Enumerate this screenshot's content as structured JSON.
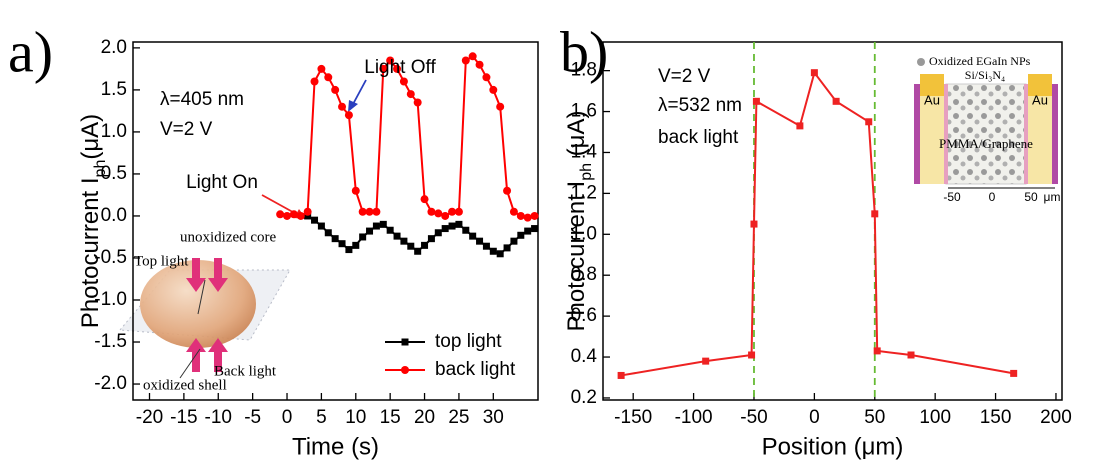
{
  "chart_data": [
    {
      "type": "line",
      "panel_label": "a)",
      "xlabel": "Time (s)",
      "ylabel": [
        "Photocurrent I",
        "ph",
        "(μA)"
      ],
      "x": [
        -1,
        0,
        1,
        2,
        3,
        4,
        5,
        6,
        7,
        8,
        9,
        10,
        11,
        12,
        13,
        14,
        15,
        16,
        17,
        18,
        19,
        20,
        21,
        22,
        23,
        24,
        25,
        26,
        27,
        28,
        29,
        30,
        31,
        32,
        33,
        34,
        35,
        36
      ],
      "series": [
        {
          "name": "top light",
          "color": "#000000",
          "marker": "square",
          "values": [
            null,
            null,
            null,
            null,
            0,
            -0.05,
            -0.12,
            -0.2,
            -0.27,
            -0.33,
            -0.4,
            -0.35,
            -0.25,
            -0.18,
            -0.12,
            -0.1,
            -0.17,
            -0.24,
            -0.3,
            -0.36,
            -0.42,
            -0.35,
            -0.27,
            -0.2,
            -0.15,
            -0.12,
            -0.1,
            -0.17,
            -0.24,
            -0.3,
            -0.36,
            -0.42,
            -0.45,
            -0.38,
            -0.3,
            -0.23,
            -0.18,
            -0.15
          ]
        },
        {
          "name": "back light",
          "color": "#ff0000",
          "marker": "circle",
          "values": [
            0.02,
            0,
            0.02,
            0,
            0.05,
            1.6,
            1.75,
            1.65,
            1.5,
            1.3,
            1.2,
            0.3,
            0.05,
            0.05,
            0.05,
            1.75,
            1.85,
            1.75,
            1.6,
            1.45,
            1.35,
            0.2,
            0.05,
            0.03,
            0,
            0.05,
            0.05,
            1.85,
            1.9,
            1.8,
            1.65,
            1.5,
            1.3,
            0.3,
            0.05,
            0,
            -0.02,
            0
          ]
        }
      ],
      "xlim": [
        -22.4,
        36.5
      ],
      "xticks": [
        -20,
        -15,
        -10,
        -5,
        0,
        5,
        10,
        15,
        20,
        25,
        30
      ],
      "ylim": [
        -2.19,
        2.07
      ],
      "yticks": [
        {
          "value": -2,
          "label": "-2.0"
        },
        -1.5,
        {
          "value": -1,
          "label": "-1.0"
        },
        -0.5,
        {
          "value": 0,
          "label": "0.0"
        },
        0.5,
        {
          "value": 1,
          "label": "1.0"
        },
        1.5,
        {
          "value": 2,
          "label": "2.0"
        }
      ],
      "legend": "lower right",
      "annotations": [
        {
          "text": "λ=405 nm",
          "color": "#000000"
        },
        {
          "text": "V=2 V",
          "color": "#000000"
        },
        {
          "text": "Light Off",
          "color": "#2a3fbf"
        },
        {
          "text": "Light On",
          "color": "#ee2222"
        },
        {
          "text": "unoxidized core",
          "color": "#000000"
        },
        {
          "text": "Top light",
          "color": "#000000"
        },
        {
          "text": "Back light",
          "color": "#000000"
        },
        {
          "text": "oxidized shell",
          "color": "#000000"
        }
      ]
    },
    {
      "type": "line",
      "panel_label": "b)",
      "xlabel": "Position (μm)",
      "ylabel": [
        "Photocurrent I",
        "ph",
        " (μA)"
      ],
      "x": [
        -160,
        -90,
        -52,
        -50,
        -48,
        -12,
        0,
        18,
        45,
        50,
        52,
        80,
        165
      ],
      "series": [
        {
          "name": "back light",
          "color": "#ee2222",
          "marker": "square",
          "values": [
            0.31,
            0.38,
            0.41,
            1.05,
            1.65,
            1.53,
            1.79,
            1.65,
            1.55,
            1.1,
            0.43,
            0.41,
            0.32
          ]
        }
      ],
      "reference_lines": [
        -50,
        50
      ],
      "reference_color": "#66bb33",
      "xlim": [
        -175,
        205
      ],
      "xticks": [
        -150,
        -100,
        -50,
        0,
        50,
        100,
        150,
        200
      ],
      "ylim": [
        0.19,
        1.94
      ],
      "yticks": [
        0.2,
        0.4,
        0.6,
        0.8,
        {
          "value": 1,
          "label": "1.0"
        },
        1.2,
        1.4,
        1.6,
        1.8
      ],
      "annotations": [
        {
          "text": "V=2 V",
          "color": "#000000"
        },
        {
          "text": "λ=532 nm",
          "color": "#000000"
        },
        {
          "text": "back light",
          "color": "#000000"
        },
        {
          "text": "Oxidized EGaIn NPs",
          "color": "#000000"
        },
        {
          "text": "Si/Si₃N₄",
          "color": "#000000"
        },
        {
          "text": "Au",
          "color": "#000000"
        },
        {
          "text": "Au",
          "color": "#000000"
        },
        {
          "text": "PMMA/Graphene",
          "color": "#000000"
        },
        {
          "text": "-50",
          "color": "#000000"
        },
        {
          "text": "0",
          "color": "#000000"
        },
        {
          "text": "50",
          "color": "#000000"
        },
        {
          "text": "μm",
          "color": "#000000"
        }
      ]
    }
  ]
}
